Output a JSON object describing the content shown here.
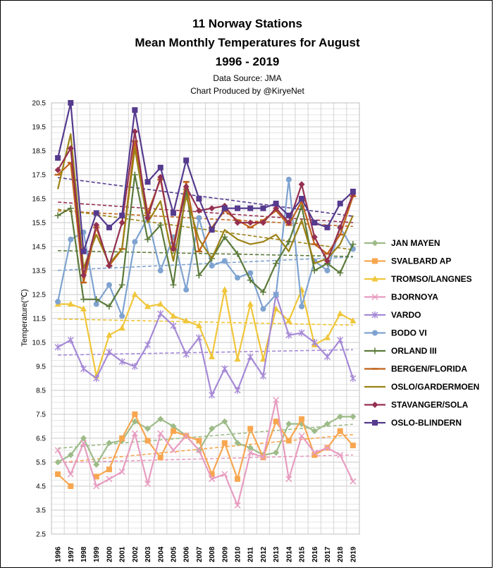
{
  "chart_data": {
    "type": "line",
    "title_lines": [
      "11 Norway Stations",
      "Mean Monthly Temperatures for August",
      "1996 - 2019"
    ],
    "subtitle_lines": [
      "Data Source: JMA",
      "Chart Produced  by @KiryeNet"
    ],
    "ylabel": "Temperature(℃)",
    "xlabel": "",
    "ylim": [
      2.5,
      20.5
    ],
    "yticks": [
      2.5,
      3.5,
      4.5,
      5.5,
      6.5,
      7.5,
      8.5,
      9.5,
      10.5,
      11.5,
      12.5,
      13.5,
      14.5,
      15.5,
      16.5,
      17.5,
      18.5,
      19.5,
      20.5
    ],
    "ytick_labels": [
      "2.5",
      "3.5",
      "4.5",
      "5.5",
      "6.5",
      "7.5",
      "8.5",
      "9.5",
      "10.5",
      "11.5",
      "12.5",
      "13.5",
      "14.5",
      "15.5",
      "16.5",
      "17.5",
      "18.5",
      "19.5",
      "20.5"
    ],
    "minor_grid_step": 0.25,
    "grid": true,
    "legend_position": "right",
    "trendlines": true,
    "categories": [
      "1996",
      "1997",
      "1998",
      "1999",
      "2000",
      "2001",
      "2002",
      "2003",
      "2004",
      "2005",
      "2006",
      "2007",
      "2008",
      "2009",
      "2010",
      "2011",
      "2012",
      "2013",
      "2014",
      "2015",
      "2016",
      "2017",
      "2018",
      "2019"
    ],
    "series": [
      {
        "name": "JAN MAYEN",
        "color": "#9dbb88",
        "marker": "diamond",
        "values": [
          5.5,
          5.8,
          6.5,
          5.4,
          6.3,
          6.4,
          7.2,
          6.9,
          7.3,
          7.0,
          6.6,
          6.0,
          6.9,
          7.2,
          6.3,
          6.1,
          5.8,
          5.9,
          7.1,
          7.1,
          6.8,
          7.1,
          7.4,
          7.4
        ]
      },
      {
        "name": "SVALBARD AP",
        "color": "#f7a650",
        "marker": "square",
        "values": [
          5.0,
          4.5,
          null,
          4.9,
          5.2,
          6.5,
          7.5,
          6.4,
          5.7,
          6.8,
          6.6,
          6.4,
          5.0,
          6.3,
          4.8,
          6.9,
          5.7,
          7.2,
          6.4,
          7.3,
          5.8,
          6.1,
          6.8,
          6.2
        ]
      },
      {
        "name": "TROMSO/LANGNES",
        "color": "#f0c63a",
        "marker": "triangle",
        "values": [
          12.1,
          12.1,
          11.9,
          9.1,
          10.8,
          11.1,
          12.5,
          12.0,
          12.1,
          11.6,
          11.4,
          11.2,
          9.9,
          12.7,
          9.8,
          12.1,
          9.8,
          11.9,
          11.4,
          12.7,
          10.4,
          10.7,
          11.7,
          11.4
        ]
      },
      {
        "name": "BJORNOYA",
        "color": "#e79cc0",
        "marker": "x",
        "values": [
          6.0,
          5.0,
          6.3,
          4.5,
          4.8,
          5.1,
          6.7,
          4.6,
          6.7,
          6.0,
          6.6,
          6.0,
          4.8,
          5.0,
          3.7,
          5.9,
          5.7,
          8.1,
          4.8,
          6.6,
          5.9,
          6.1,
          5.8,
          4.7
        ]
      },
      {
        "name": "VARDO",
        "color": "#a689d6",
        "marker": "asterisk",
        "values": [
          10.3,
          10.6,
          9.4,
          9.0,
          10.1,
          9.7,
          9.5,
          10.4,
          11.7,
          11.2,
          10.0,
          10.7,
          8.3,
          9.4,
          8.5,
          9.9,
          9.1,
          12.5,
          10.8,
          10.9,
          10.5,
          9.9,
          10.6,
          9.0
        ]
      },
      {
        "name": "BODO VI",
        "color": "#7fa3d0",
        "marker": "circle",
        "values": [
          12.2,
          14.8,
          15.1,
          12.1,
          12.9,
          11.6,
          14.7,
          15.7,
          13.5,
          14.9,
          12.7,
          15.7,
          13.7,
          13.9,
          13.2,
          13.4,
          11.9,
          12.5,
          17.3,
          12.0,
          13.9,
          13.5,
          15.3,
          14.4
        ]
      },
      {
        "name": "ORLAND III",
        "color": "#5b7a3a",
        "marker": "plus",
        "values": [
          15.8,
          16.1,
          12.3,
          12.3,
          12.0,
          12.9,
          17.5,
          14.8,
          15.4,
          12.9,
          16.9,
          13.3,
          14.0,
          14.9,
          14.2,
          13.1,
          12.6,
          13.8,
          14.7,
          16.2,
          13.5,
          13.8,
          13.4,
          14.6
        ]
      },
      {
        "name": "BERGEN/FLORIDA",
        "color": "#c0621a",
        "marker": "dash",
        "values": [
          17.5,
          18.0,
          13.0,
          15.3,
          13.7,
          14.4,
          18.9,
          15.9,
          17.3,
          14.5,
          17.2,
          14.3,
          15.3,
          16.0,
          15.6,
          15.3,
          15.6,
          16.0,
          15.4,
          16.4,
          14.6,
          14.2,
          15.0,
          16.6
        ]
      },
      {
        "name": "OSLO/GARDERMOEN",
        "color": "#9b8214",
        "marker": "none",
        "values": [
          16.9,
          19.2,
          13.6,
          15.0,
          13.8,
          14.4,
          18.6,
          15.5,
          16.4,
          13.9,
          16.6,
          14.8,
          14.0,
          15.2,
          14.8,
          14.6,
          14.7,
          15.0,
          14.3,
          15.6,
          13.8,
          14.0,
          14.6,
          15.8
        ]
      },
      {
        "name": "STAVANGER/SOLA",
        "color": "#943050",
        "marker": "diamond",
        "values": [
          17.7,
          18.6,
          13.3,
          15.4,
          13.7,
          15.5,
          19.3,
          15.7,
          17.4,
          14.4,
          17.0,
          16.0,
          16.1,
          16.2,
          15.5,
          15.5,
          15.5,
          16.1,
          15.5,
          17.1,
          14.9,
          13.9,
          15.3,
          16.7
        ]
      },
      {
        "name": "OSLO-BLINDERN",
        "color": "#553a8e",
        "marker": "square",
        "values": [
          18.2,
          20.5,
          14.3,
          15.9,
          15.3,
          15.8,
          20.2,
          17.2,
          17.8,
          15.9,
          18.1,
          16.5,
          15.2,
          16.1,
          16.1,
          16.1,
          16.1,
          16.3,
          15.8,
          16.5,
          15.5,
          15.3,
          16.3,
          16.8
        ]
      }
    ]
  }
}
